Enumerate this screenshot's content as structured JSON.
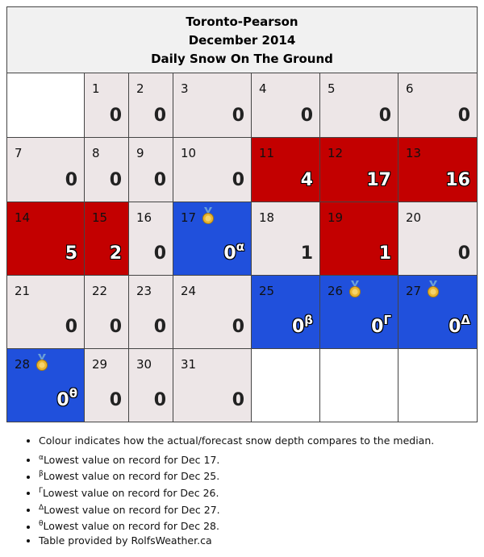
{
  "header": {
    "station": "Toronto-Pearson",
    "month": "December 2014",
    "subtitle": "Daily Snow On The Ground"
  },
  "colors": {
    "near_median": "#ede6e7",
    "above_median": "#c30000",
    "below_median": "#2050dc",
    "empty": "#ffffff"
  },
  "days": [
    {
      "day": "1",
      "value": "0",
      "status": "gray",
      "sup": ""
    },
    {
      "day": "2",
      "value": "0",
      "status": "gray",
      "sup": ""
    },
    {
      "day": "3",
      "value": "0",
      "status": "gray",
      "sup": ""
    },
    {
      "day": "4",
      "value": "0",
      "status": "gray",
      "sup": ""
    },
    {
      "day": "5",
      "value": "0",
      "status": "gray",
      "sup": ""
    },
    {
      "day": "6",
      "value": "0",
      "status": "gray",
      "sup": ""
    },
    {
      "day": "7",
      "value": "0",
      "status": "gray",
      "sup": ""
    },
    {
      "day": "8",
      "value": "0",
      "status": "gray",
      "sup": ""
    },
    {
      "day": "9",
      "value": "0",
      "status": "gray",
      "sup": ""
    },
    {
      "day": "10",
      "value": "0",
      "status": "gray",
      "sup": ""
    },
    {
      "day": "11",
      "value": "4",
      "status": "red",
      "sup": ""
    },
    {
      "day": "12",
      "value": "17",
      "status": "red",
      "sup": ""
    },
    {
      "day": "13",
      "value": "16",
      "status": "red",
      "sup": ""
    },
    {
      "day": "14",
      "value": "5",
      "status": "red",
      "sup": ""
    },
    {
      "day": "15",
      "value": "2",
      "status": "red",
      "sup": ""
    },
    {
      "day": "16",
      "value": "0",
      "status": "gray",
      "sup": ""
    },
    {
      "day": "17",
      "value": "0",
      "status": "blue",
      "sup": "α",
      "medal": true
    },
    {
      "day": "18",
      "value": "1",
      "status": "gray",
      "sup": ""
    },
    {
      "day": "19",
      "value": "1",
      "status": "red",
      "sup": ""
    },
    {
      "day": "20",
      "value": "0",
      "status": "gray",
      "sup": ""
    },
    {
      "day": "21",
      "value": "0",
      "status": "gray",
      "sup": ""
    },
    {
      "day": "22",
      "value": "0",
      "status": "gray",
      "sup": ""
    },
    {
      "day": "23",
      "value": "0",
      "status": "gray",
      "sup": ""
    },
    {
      "day": "24",
      "value": "0",
      "status": "gray",
      "sup": ""
    },
    {
      "day": "25",
      "value": "0",
      "status": "blue",
      "sup": "β"
    },
    {
      "day": "26",
      "value": "0",
      "status": "blue",
      "sup": "Γ",
      "medal": true
    },
    {
      "day": "27",
      "value": "0",
      "status": "blue",
      "sup": "Δ",
      "medal": true
    },
    {
      "day": "28",
      "value": "0",
      "status": "blue",
      "sup": "θ",
      "medal": true
    },
    {
      "day": "29",
      "value": "0",
      "status": "gray",
      "sup": ""
    },
    {
      "day": "30",
      "value": "0",
      "status": "gray",
      "sup": ""
    },
    {
      "day": "31",
      "value": "0",
      "status": "gray",
      "sup": ""
    }
  ],
  "notes": [
    {
      "sup": "",
      "text": "Colour indicates how the actual/forecast snow depth compares to the median."
    },
    {
      "sup": "α",
      "text": "Lowest value on record for Dec 17."
    },
    {
      "sup": "β",
      "text": "Lowest value on record for Dec 25."
    },
    {
      "sup": "Γ",
      "text": "Lowest value on record for Dec 26."
    },
    {
      "sup": "Δ",
      "text": "Lowest value on record for Dec 27."
    },
    {
      "sup": "θ",
      "text": "Lowest value on record for Dec 28."
    },
    {
      "sup": "",
      "text": "Table provided by RolfsWeather.ca"
    }
  ]
}
